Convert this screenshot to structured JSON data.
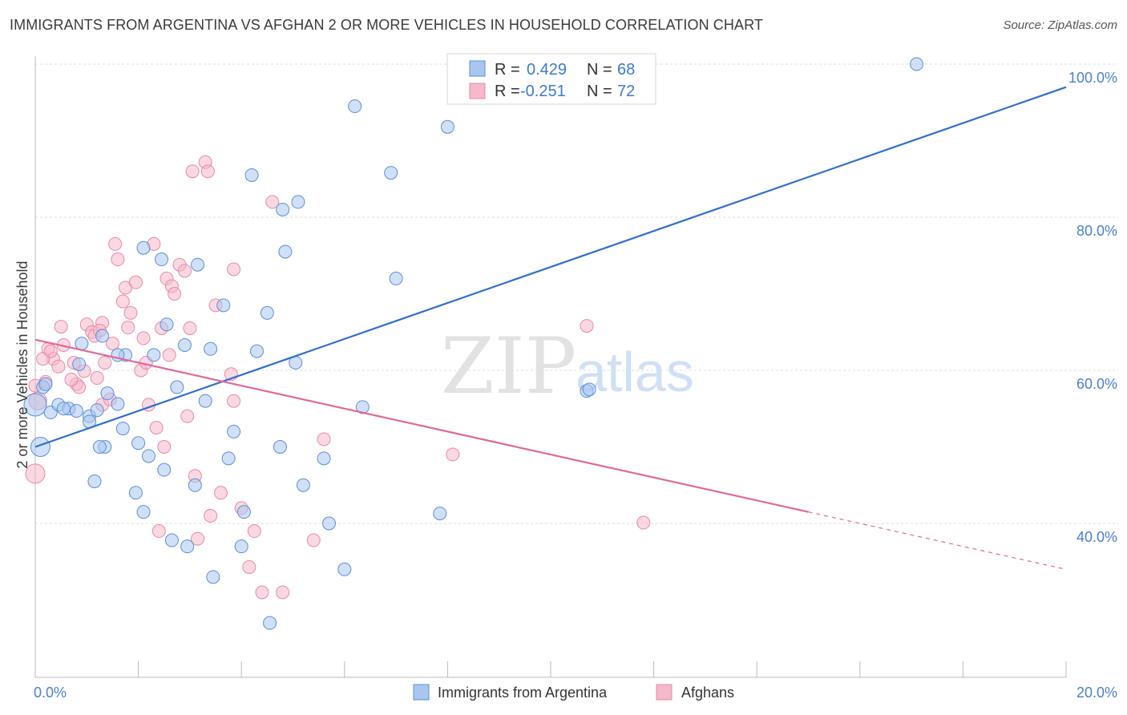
{
  "header": {
    "title": "IMMIGRANTS FROM ARGENTINA VS AFGHAN 2 OR MORE VEHICLES IN HOUSEHOLD CORRELATION CHART",
    "source": "Source: ZipAtlas.com"
  },
  "watermark": {
    "zip": "ZIP",
    "atlas": "atlas"
  },
  "colors": {
    "blue_fill": "#a9c6ef",
    "blue_stroke": "#5b8fd8",
    "blue_line": "#2f6fce",
    "pink_fill": "#f6b8cb",
    "pink_stroke": "#e889a6",
    "pink_line": "#e0689a",
    "tick_text": "#4a7fd1",
    "grid": "#dcdcdc"
  },
  "legend": {
    "r_label": "R =",
    "n_label": "N =",
    "blue": {
      "r": "0.429",
      "n": "68"
    },
    "pink": {
      "r": "-0.251",
      "n": "72"
    }
  },
  "chart_data": {
    "type": "scatter",
    "title": "IMMIGRANTS FROM ARGENTINA VS AFGHAN 2 OR MORE VEHICLES IN HOUSEHOLD CORRELATION CHART",
    "xlabel": "",
    "ylabel": "2 or more Vehicles in Household",
    "xlim": [
      0,
      20
    ],
    "ylim": [
      20,
      102
    ],
    "x_tick_labels": [
      "0.0%",
      "20.0%"
    ],
    "y_ticks": [
      40,
      60,
      80,
      100
    ],
    "y_tick_labels": [
      "40.0%",
      "60.0%",
      "80.0%",
      "100.0%"
    ],
    "grid": true,
    "legend_position": "bottom",
    "series": [
      {
        "name": "Immigrants from Argentina",
        "color": "#5b8fd8",
        "r": 0.429,
        "n": 68,
        "trend": {
          "x": [
            0.0,
            20.0
          ],
          "y": [
            50.0,
            97.0
          ]
        },
        "points": [
          [
            0.0,
            55.5
          ],
          [
            0.15,
            57.8
          ],
          [
            0.2,
            58.2
          ],
          [
            0.3,
            54.5
          ],
          [
            0.1,
            50.0
          ],
          [
            0.45,
            55.5
          ],
          [
            0.65,
            55.0
          ],
          [
            0.8,
            54.7
          ],
          [
            0.9,
            63.5
          ],
          [
            0.85,
            60.8
          ],
          [
            1.05,
            54.0
          ],
          [
            1.05,
            53.3
          ],
          [
            1.2,
            54.8
          ],
          [
            1.3,
            64.5
          ],
          [
            1.4,
            57.0
          ],
          [
            1.6,
            55.6
          ],
          [
            1.7,
            52.4
          ],
          [
            1.35,
            50.0
          ],
          [
            1.15,
            45.5
          ],
          [
            1.75,
            62.0
          ],
          [
            1.95,
            44.0
          ],
          [
            2.0,
            50.5
          ],
          [
            2.2,
            48.8
          ],
          [
            2.1,
            41.5
          ],
          [
            2.3,
            62.0
          ],
          [
            2.5,
            47.0
          ],
          [
            2.65,
            37.8
          ],
          [
            2.55,
            66.0
          ],
          [
            2.75,
            57.8
          ],
          [
            2.9,
            63.3
          ],
          [
            2.95,
            37.0
          ],
          [
            3.1,
            45.0
          ],
          [
            3.3,
            56.0
          ],
          [
            3.4,
            62.8
          ],
          [
            3.45,
            33.0
          ],
          [
            3.65,
            68.5
          ],
          [
            3.75,
            48.5
          ],
          [
            3.85,
            52.0
          ],
          [
            4.0,
            37.0
          ],
          [
            4.05,
            41.5
          ],
          [
            4.2,
            85.5
          ],
          [
            4.3,
            62.5
          ],
          [
            4.5,
            67.5
          ],
          [
            4.75,
            50.0
          ],
          [
            4.8,
            81.0
          ],
          [
            4.85,
            75.5
          ],
          [
            4.55,
            27.0
          ],
          [
            5.05,
            61.0
          ],
          [
            5.1,
            82.0
          ],
          [
            5.2,
            45.0
          ],
          [
            5.6,
            48.5
          ],
          [
            5.7,
            40.0
          ],
          [
            6.0,
            34.0
          ],
          [
            6.2,
            94.5
          ],
          [
            6.35,
            55.2
          ],
          [
            6.9,
            85.8
          ],
          [
            7.0,
            72.0
          ],
          [
            8.0,
            91.8
          ],
          [
            7.85,
            41.3
          ],
          [
            10.7,
            57.3
          ],
          [
            10.75,
            57.5
          ],
          [
            17.1,
            100.0
          ],
          [
            1.6,
            62.0
          ],
          [
            2.45,
            74.5
          ],
          [
            3.15,
            73.8
          ],
          [
            2.1,
            76.0
          ],
          [
            0.55,
            55.0
          ],
          [
            1.25,
            50.0
          ]
        ],
        "point_sizes": {
          "default": 8,
          "large": [
            [
              0.0,
              55.5,
              14
            ],
            [
              0.1,
              50.0,
              12
            ]
          ]
        }
      },
      {
        "name": "Afghans",
        "color": "#e889a6",
        "r": -0.251,
        "n": 72,
        "trend": {
          "x": [
            0.0,
            15.0
          ],
          "y": [
            64.0,
            41.5
          ]
        },
        "trend_dashed": {
          "x": [
            15.0,
            20.0
          ],
          "y": [
            41.5,
            34.0
          ]
        },
        "points": [
          [
            0.0,
            46.5
          ],
          [
            0.05,
            56.0
          ],
          [
            0.2,
            58.5
          ],
          [
            0.25,
            62.8
          ],
          [
            0.35,
            61.5
          ],
          [
            0.5,
            65.7
          ],
          [
            0.45,
            60.5
          ],
          [
            0.55,
            63.3
          ],
          [
            0.75,
            61.0
          ],
          [
            0.8,
            58.2
          ],
          [
            0.85,
            57.8
          ],
          [
            0.95,
            59.9
          ],
          [
            1.0,
            66.0
          ],
          [
            1.1,
            65.0
          ],
          [
            1.15,
            64.5
          ],
          [
            1.2,
            59.0
          ],
          [
            1.3,
            55.5
          ],
          [
            1.3,
            66.2
          ],
          [
            1.35,
            61.0
          ],
          [
            1.45,
            56.2
          ],
          [
            1.5,
            63.5
          ],
          [
            1.55,
            76.5
          ],
          [
            1.6,
            74.5
          ],
          [
            1.7,
            69.0
          ],
          [
            1.75,
            70.8
          ],
          [
            1.8,
            65.6
          ],
          [
            1.85,
            67.5
          ],
          [
            1.95,
            71.5
          ],
          [
            2.05,
            60.0
          ],
          [
            2.1,
            64.2
          ],
          [
            2.15,
            61.0
          ],
          [
            2.2,
            55.5
          ],
          [
            2.3,
            76.5
          ],
          [
            2.35,
            52.5
          ],
          [
            2.4,
            39.0
          ],
          [
            2.45,
            65.5
          ],
          [
            2.5,
            50.0
          ],
          [
            2.55,
            72.0
          ],
          [
            2.6,
            62.0
          ],
          [
            2.65,
            71.0
          ],
          [
            2.7,
            70.0
          ],
          [
            2.8,
            73.8
          ],
          [
            2.9,
            73.0
          ],
          [
            2.95,
            54.0
          ],
          [
            3.0,
            65.5
          ],
          [
            3.05,
            86.0
          ],
          [
            3.1,
            46.2
          ],
          [
            3.15,
            38.0
          ],
          [
            3.3,
            87.2
          ],
          [
            3.35,
            86.0
          ],
          [
            3.4,
            41.0
          ],
          [
            3.5,
            68.5
          ],
          [
            3.6,
            44.0
          ],
          [
            3.8,
            59.5
          ],
          [
            3.85,
            56.0
          ],
          [
            3.85,
            73.2
          ],
          [
            4.0,
            42.0
          ],
          [
            4.15,
            34.3
          ],
          [
            4.25,
            39.0
          ],
          [
            4.4,
            31.0
          ],
          [
            4.6,
            82.0
          ],
          [
            4.8,
            31.0
          ],
          [
            5.4,
            37.8
          ],
          [
            5.6,
            51.0
          ],
          [
            8.1,
            49.0
          ],
          [
            10.7,
            65.8
          ],
          [
            11.8,
            40.1
          ],
          [
            0.0,
            58.0
          ],
          [
            0.15,
            61.5
          ],
          [
            0.7,
            58.8
          ],
          [
            1.25,
            65.2
          ],
          [
            0.3,
            62.5
          ]
        ],
        "point_sizes": {
          "default": 8,
          "large": [
            [
              0.0,
              46.5,
              12
            ],
            [
              0.05,
              56.0,
              11
            ]
          ]
        }
      }
    ]
  }
}
